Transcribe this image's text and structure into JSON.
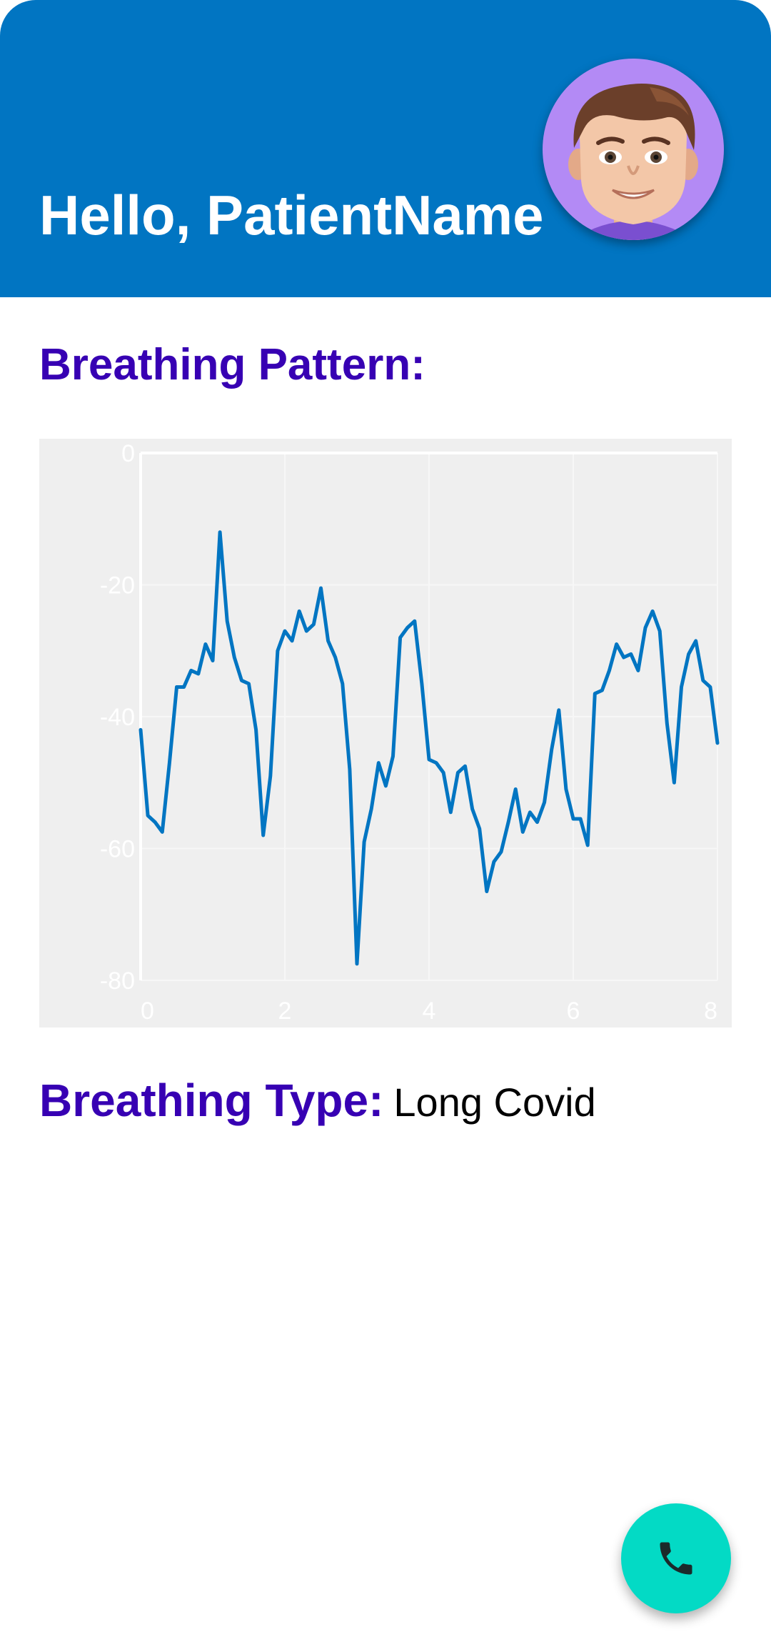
{
  "header": {
    "greeting": "Hello, PatientName",
    "background_color": "#0175c2",
    "avatar_icon": "avatar-icon"
  },
  "breathing_pattern": {
    "title": "Breathing Pattern:"
  },
  "chart_data": {
    "type": "line",
    "title": "",
    "xlabel": "",
    "ylabel": "",
    "xlim": [
      0,
      8
    ],
    "ylim": [
      -80,
      0
    ],
    "x_ticks": [
      "0",
      "2",
      "4",
      "6",
      "8"
    ],
    "y_ticks": [
      "0",
      "-20",
      "-40",
      "-60",
      "-80"
    ],
    "grid": true,
    "line_color": "#0175c2",
    "background_color": "#efefef",
    "series": [
      {
        "x": [
          0,
          0.1,
          0.2,
          0.3,
          0.4,
          0.5,
          0.6,
          0.7,
          0.8,
          0.9,
          1.0,
          1.1,
          1.2,
          1.3,
          1.4,
          1.5,
          1.6,
          1.7,
          1.8,
          1.9,
          2.0,
          2.1,
          2.2,
          2.3,
          2.4,
          2.5,
          2.6,
          2.7,
          2.8,
          2.9,
          3.0,
          3.1,
          3.2,
          3.3,
          3.4,
          3.5,
          3.6,
          3.7,
          3.8,
          3.9,
          4.0,
          4.1,
          4.2,
          4.3,
          4.4,
          4.5,
          4.6,
          4.7,
          4.8,
          4.9,
          5.0,
          5.1,
          5.2,
          5.3,
          5.4,
          5.5,
          5.6,
          5.7,
          5.8,
          5.9,
          6.0,
          6.1,
          6.2,
          6.3,
          6.4,
          6.5,
          6.6,
          6.7,
          6.8,
          6.9,
          7.0,
          7.1,
          7.2,
          7.3,
          7.4,
          7.5,
          7.6,
          7.7,
          7.8,
          7.9,
          8.0
        ],
        "y": [
          -42,
          -55,
          -56,
          -57.5,
          -47,
          -35.5,
          -35.5,
          -33,
          -33.5,
          -29,
          -31.5,
          -12,
          -25.5,
          -31,
          -34.5,
          -35,
          -42,
          -58,
          -49,
          -30,
          -27,
          -28.5,
          -24,
          -27,
          -26,
          -20.5,
          -28.5,
          -31,
          -35,
          -48,
          -77.5,
          -59,
          -54,
          -47,
          -50.5,
          -46,
          -28,
          -26.5,
          -25.5,
          -35,
          -46.5,
          -47,
          -48.5,
          -54.5,
          -48.5,
          -47.5,
          -54,
          -57,
          -66.5,
          -62,
          -60.5,
          -56,
          -51,
          -57.5,
          -54.5,
          -56,
          -53,
          -45,
          -39,
          -51,
          -55.5,
          -55.5,
          -59.5,
          -36.5,
          -36,
          -33,
          -29,
          -31,
          -30.5,
          -33,
          -26.5,
          -24,
          -27,
          -41,
          -50,
          -35.5,
          -30.5,
          -28.5,
          -34.5,
          -35.5,
          -44
        ]
      }
    ]
  },
  "breathing_type": {
    "label": "Breathing Type:",
    "value": "Long Covid"
  },
  "fab": {
    "icon": "phone-icon",
    "color": "#03dac5"
  }
}
